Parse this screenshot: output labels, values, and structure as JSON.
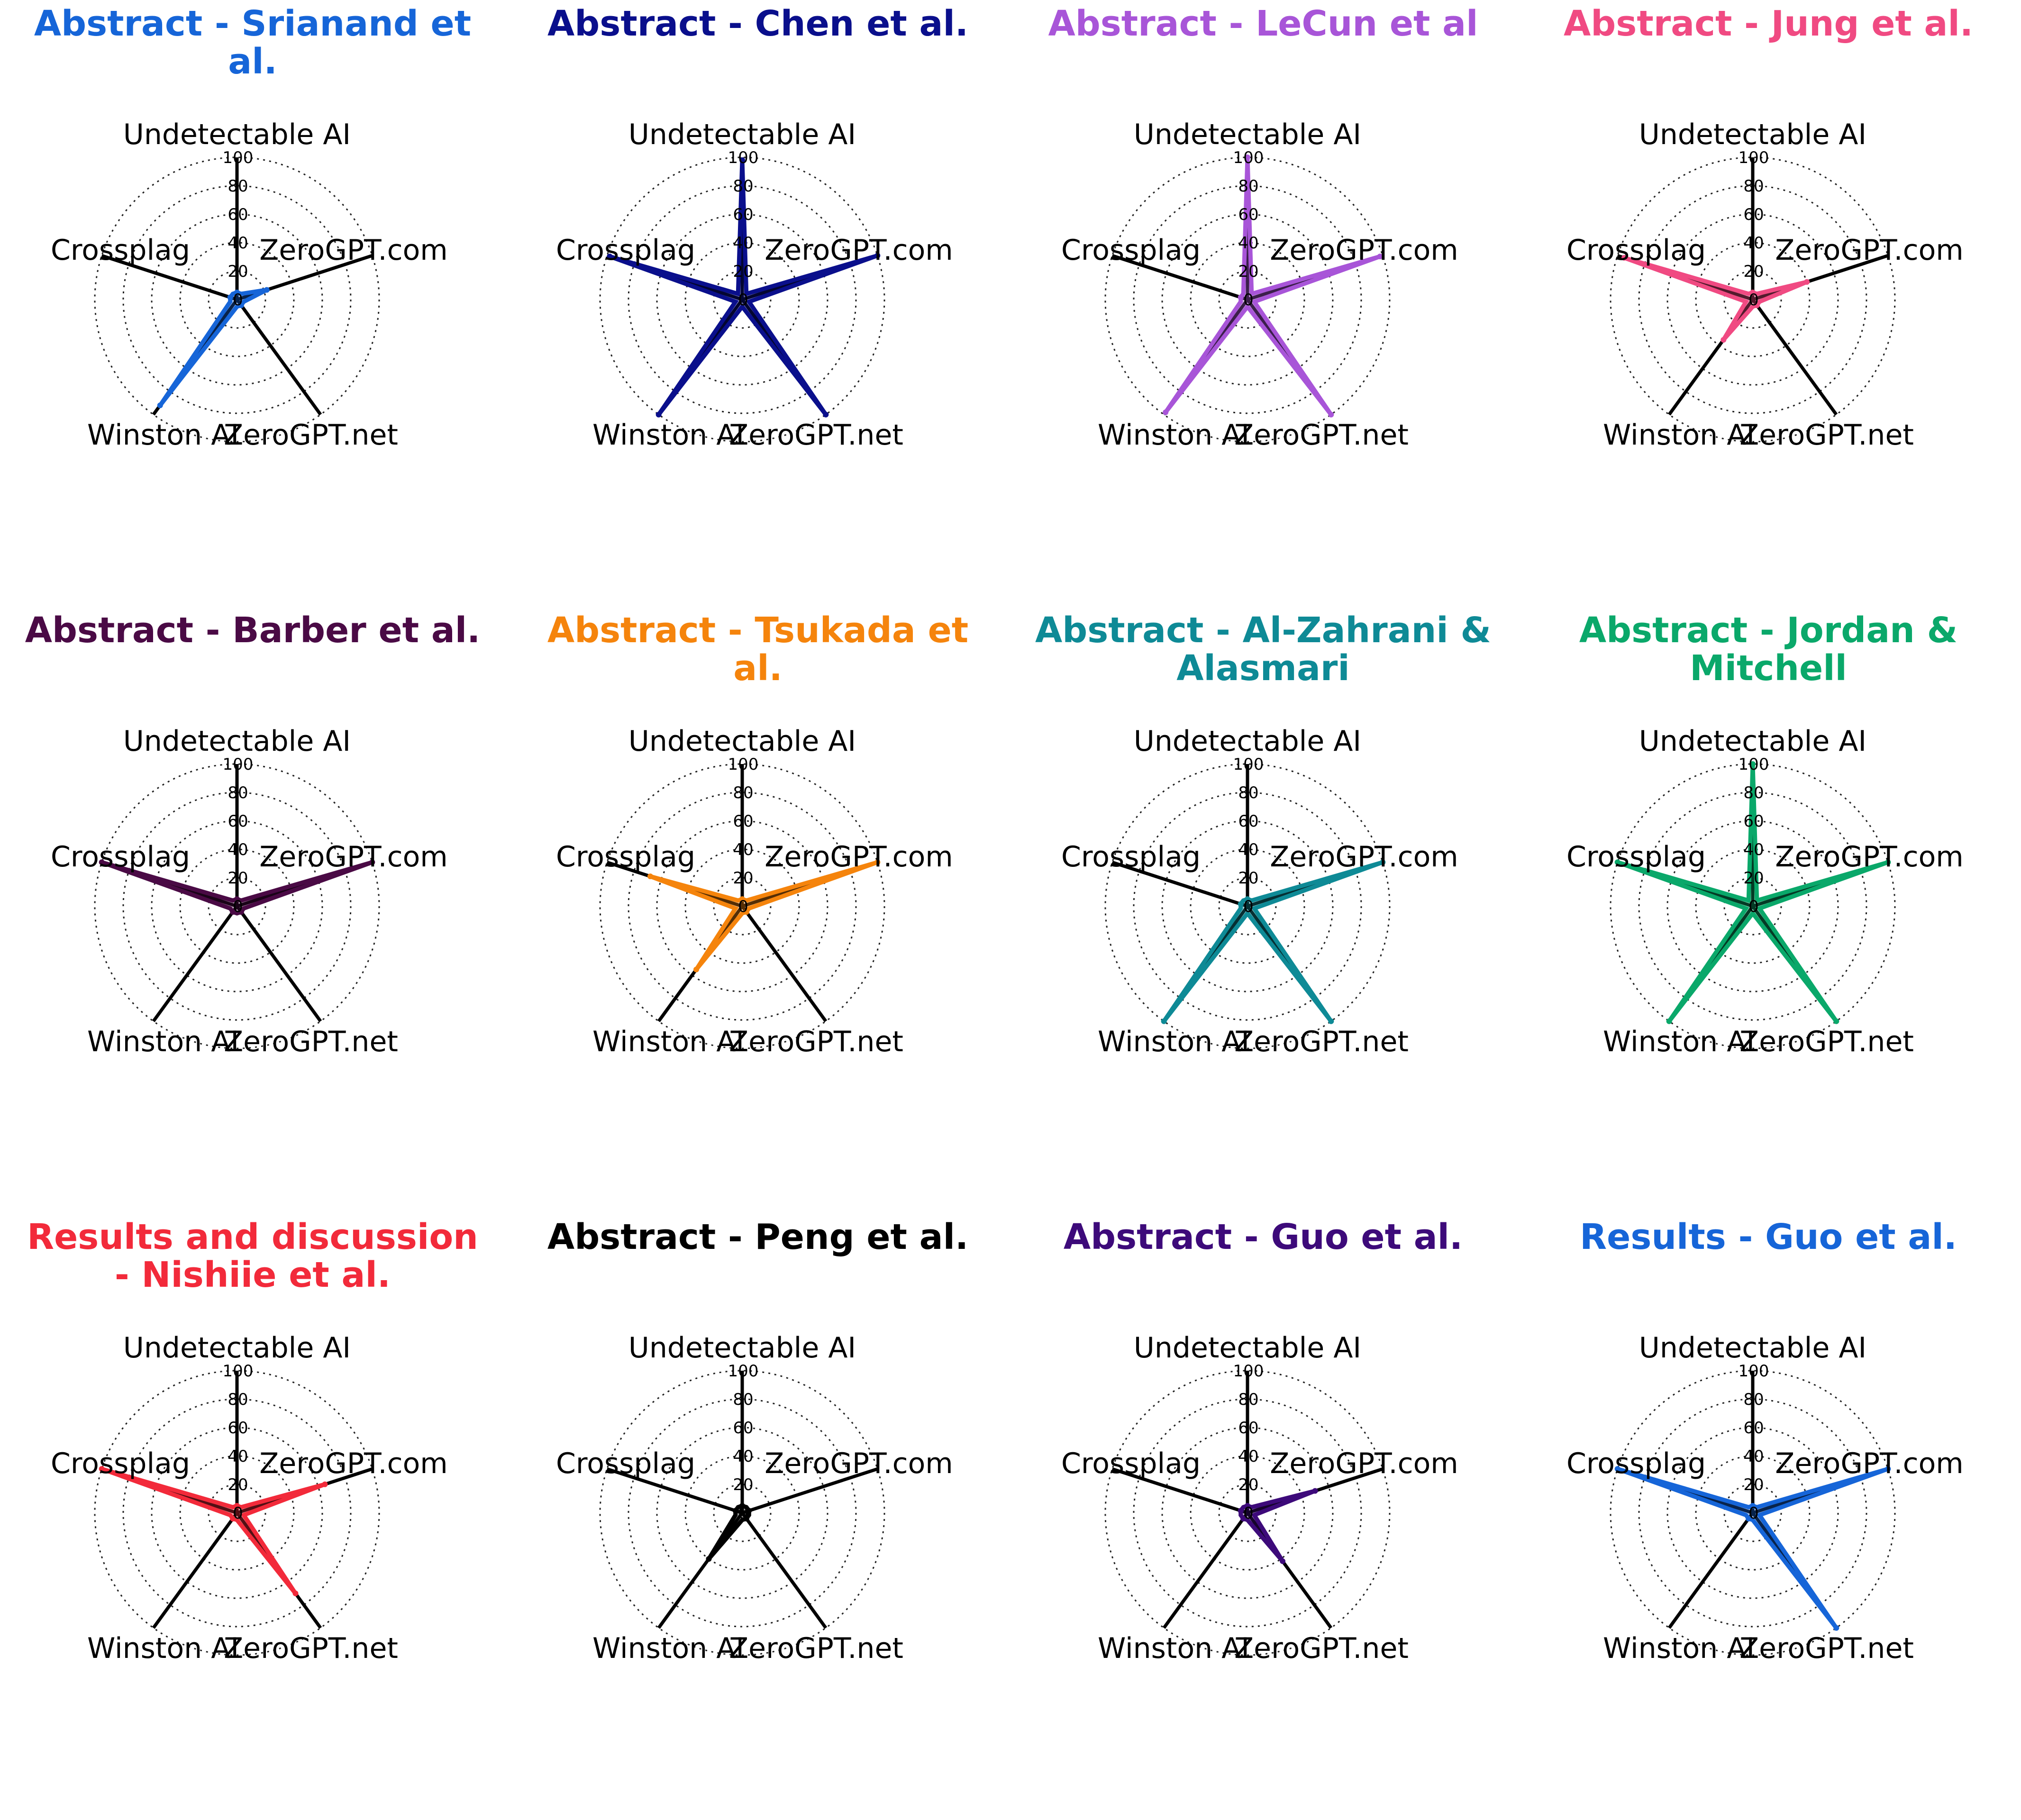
{
  "chart_data": [
    {
      "type": "radar",
      "title": "Abstract - Srianand et al.",
      "color": "#1665d8",
      "axes": [
        "Undetectable AI",
        "ZeroGPT.com",
        "ZeroGPT.net",
        "Winston AI",
        "Crossplag"
      ],
      "ticks": [
        "0",
        "20",
        "40",
        "60",
        "80",
        "100"
      ],
      "rlim": [
        0,
        100
      ],
      "values": [
        5,
        22,
        5,
        92,
        5
      ]
    },
    {
      "type": "radar",
      "title": "Abstract - Chen et al.",
      "color": "#0a0f8c",
      "axes": [
        "Undetectable AI",
        "ZeroGPT.com",
        "ZeroGPT.net",
        "Winston AI",
        "Crossplag"
      ],
      "ticks": [
        "0",
        "20",
        "40",
        "60",
        "80",
        "100"
      ],
      "rlim": [
        0,
        100
      ],
      "values": [
        98,
        100,
        100,
        100,
        98
      ]
    },
    {
      "type": "radar",
      "title": "Abstract - LeCun et al",
      "color": "#a855d8",
      "axes": [
        "Undetectable AI",
        "ZeroGPT.com",
        "ZeroGPT.net",
        "Winston AI",
        "Crossplag"
      ],
      "ticks": [
        "0",
        "20",
        "40",
        "60",
        "80",
        "100"
      ],
      "rlim": [
        0,
        100
      ],
      "values": [
        100,
        98,
        100,
        98,
        5
      ]
    },
    {
      "type": "radar",
      "title": "Abstract - Jung et al.",
      "color": "#f04a82",
      "axes": [
        "Undetectable AI",
        "ZeroGPT.com",
        "ZeroGPT.net",
        "Winston AI",
        "Crossplag"
      ],
      "ticks": [
        "0",
        "20",
        "40",
        "60",
        "80",
        "100"
      ],
      "rlim": [
        0,
        100
      ],
      "values": [
        5,
        40,
        5,
        35,
        95
      ]
    },
    {
      "type": "radar",
      "title": "Abstract - Barber et al.",
      "color": "#4a0a45",
      "axes": [
        "Undetectable AI",
        "ZeroGPT.com",
        "ZeroGPT.net",
        "Winston AI",
        "Crossplag"
      ],
      "ticks": [
        "0",
        "20",
        "40",
        "60",
        "80",
        "100"
      ],
      "rlim": [
        0,
        100
      ],
      "values": [
        5,
        100,
        5,
        5,
        100
      ]
    },
    {
      "type": "radar",
      "title": "Abstract - Tsukada et al.",
      "color": "#f5840c",
      "axes": [
        "Undetectable AI",
        "ZeroGPT.com",
        "ZeroGPT.net",
        "Winston AI",
        "Crossplag"
      ],
      "ticks": [
        "0",
        "20",
        "40",
        "60",
        "80",
        "100"
      ],
      "rlim": [
        0,
        100
      ],
      "values": [
        5,
        100,
        5,
        55,
        68
      ]
    },
    {
      "type": "radar",
      "title": "Abstract - Al-Zahrani & Alasmari",
      "color": "#0e8a96",
      "axes": [
        "Undetectable AI",
        "ZeroGPT.com",
        "ZeroGPT.net",
        "Winston AI",
        "Crossplag"
      ],
      "ticks": [
        "0",
        "20",
        "40",
        "60",
        "80",
        "100"
      ],
      "rlim": [
        0,
        100
      ],
      "values": [
        5,
        100,
        100,
        100,
        5
      ]
    },
    {
      "type": "radar",
      "title": "Abstract - Jordan & Mitchell",
      "color": "#0aa86a",
      "axes": [
        "Undetectable AI",
        "ZeroGPT.com",
        "ZeroGPT.net",
        "Winston AI",
        "Crossplag"
      ],
      "ticks": [
        "0",
        "20",
        "40",
        "60",
        "80",
        "100"
      ],
      "rlim": [
        0,
        100
      ],
      "values": [
        100,
        100,
        100,
        100,
        100
      ]
    },
    {
      "type": "radar",
      "title": "Results and discussion - Nishiie et al.",
      "color": "#f22a3a",
      "axes": [
        "Undetectable AI",
        "ZeroGPT.com",
        "ZeroGPT.net",
        "Winston AI",
        "Crossplag"
      ],
      "ticks": [
        "0",
        "20",
        "40",
        "60",
        "80",
        "100"
      ],
      "rlim": [
        0,
        100
      ],
      "values": [
        5,
        65,
        70,
        5,
        100
      ]
    },
    {
      "type": "radar",
      "title": "Abstract - Peng et al.",
      "color": "#000000",
      "axes": [
        "Undetectable AI",
        "ZeroGPT.com",
        "ZeroGPT.net",
        "Winston AI",
        "Crossplag"
      ],
      "ticks": [
        "0",
        "20",
        "40",
        "60",
        "80",
        "100"
      ],
      "rlim": [
        0,
        100
      ],
      "values": [
        5,
        5,
        5,
        40,
        5
      ]
    },
    {
      "type": "radar",
      "title": "Abstract - Guo et al.",
      "color": "#3d0a7a",
      "axes": [
        "Undetectable AI",
        "ZeroGPT.com",
        "ZeroGPT.net",
        "Winston AI",
        "Crossplag"
      ],
      "ticks": [
        "0",
        "20",
        "40",
        "60",
        "80",
        "100"
      ],
      "rlim": [
        0,
        100
      ],
      "values": [
        5,
        50,
        42,
        5,
        5
      ]
    },
    {
      "type": "radar",
      "title": "Results - Guo et al.",
      "color": "#1665d8",
      "axes": [
        "Undetectable AI",
        "ZeroGPT.com",
        "ZeroGPT.net",
        "Winston AI",
        "Crossplag"
      ],
      "ticks": [
        "0",
        "20",
        "40",
        "60",
        "80",
        "100"
      ],
      "rlim": [
        0,
        100
      ],
      "values": [
        5,
        100,
        100,
        5,
        100
      ]
    }
  ]
}
